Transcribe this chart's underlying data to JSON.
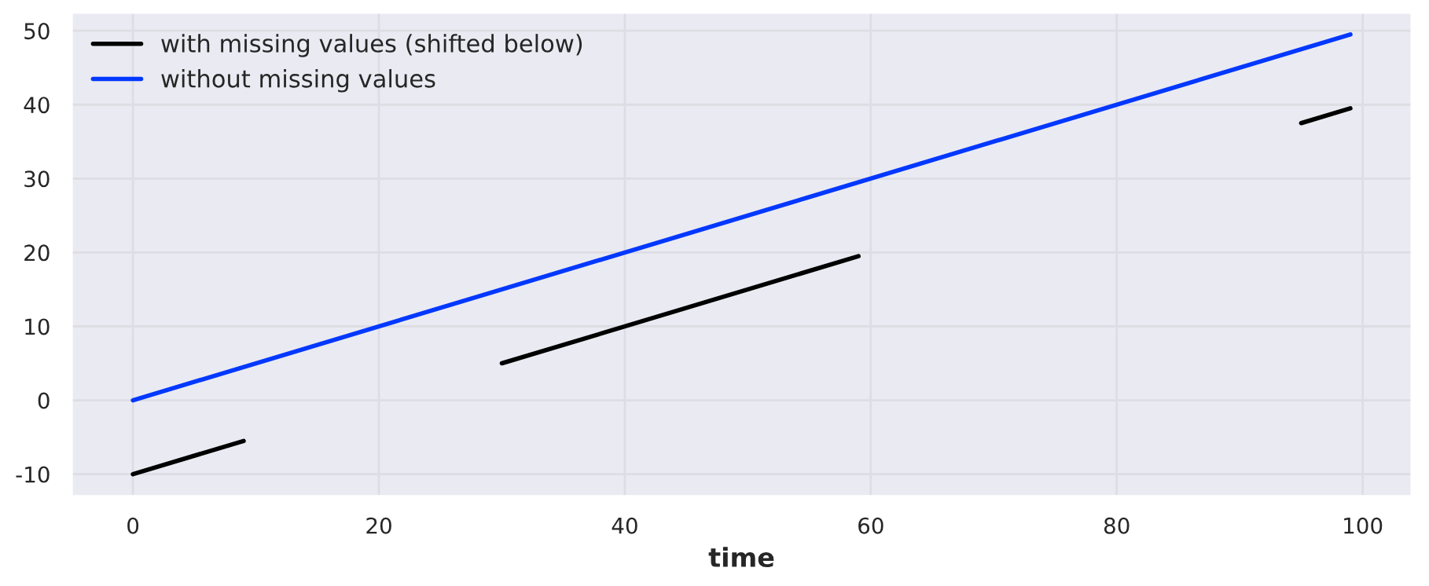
{
  "chart_data": {
    "type": "line",
    "xlabel": "time",
    "series": [
      {
        "name": "with missing values (shifted below)",
        "color": "#000000",
        "x": [
          0,
          9,
          10,
          30,
          59,
          60,
          95,
          99
        ],
        "values": [
          -10,
          -5.5,
          null,
          5,
          19.5,
          null,
          37.5,
          39.5
        ]
      },
      {
        "name": "without missing values",
        "color": "#0038ff",
        "x": [
          0,
          99
        ],
        "values": [
          0,
          49.5
        ]
      }
    ],
    "xlim": [
      -5,
      104
    ],
    "ylim": [
      -13,
      52.5
    ],
    "xticks": [
      0,
      20,
      40,
      60,
      80,
      100
    ],
    "yticks": [
      -10,
      0,
      10,
      20,
      30,
      40,
      50
    ],
    "grid": true,
    "legend": "top left",
    "line_style": "solid",
    "marker": "none"
  }
}
